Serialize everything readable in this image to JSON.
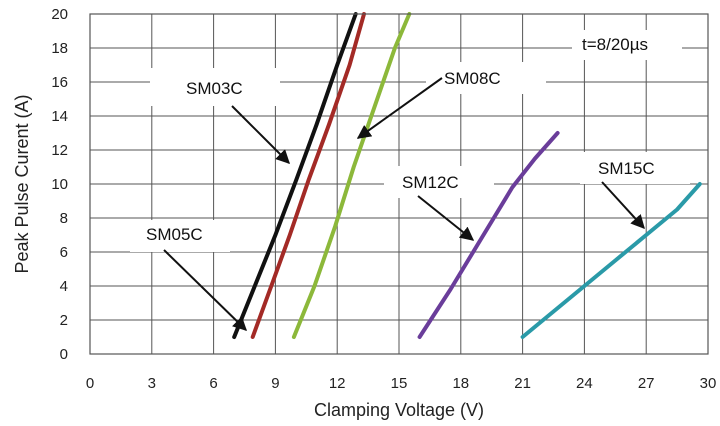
{
  "chart_data": {
    "type": "line",
    "xlabel": "Clamping Voltage (V)",
    "ylabel": "Peak  Pulse Curent (A)",
    "xlim": [
      0,
      30
    ],
    "ylim": [
      0,
      20
    ],
    "xticks": [
      "0",
      "3",
      "6",
      "9",
      "12",
      "15",
      "18",
      "21",
      "24",
      "27",
      "30"
    ],
    "yticks": [
      "0",
      "2",
      "4",
      "6",
      "8",
      "10",
      "12",
      "14",
      "16",
      "18",
      "20"
    ],
    "grid": true,
    "condition_note": "t=8/20µs",
    "series": [
      {
        "name": "SM03C",
        "color": "#111111",
        "x": [
          7.0,
          8.0,
          9.0,
          10.0,
          11.0,
          12.0,
          12.9
        ],
        "y": [
          1,
          4,
          7,
          10.2,
          13.5,
          17,
          20
        ]
      },
      {
        "name": "SM05C",
        "color": "#a32a26",
        "x": [
          7.9,
          8.8,
          9.7,
          10.6,
          11.6,
          12.6,
          13.3
        ],
        "y": [
          1,
          4,
          7,
          10.2,
          13.5,
          17,
          20
        ]
      },
      {
        "name": "SM08C",
        "color": "#8cb83a",
        "x": [
          9.9,
          10.9,
          11.9,
          12.8,
          13.8,
          14.8,
          15.5
        ],
        "y": [
          1,
          4,
          7.5,
          11,
          14.5,
          18,
          20
        ]
      },
      {
        "name": "SM12C",
        "color": "#6a3d9a",
        "x": [
          16.0,
          17.5,
          19.0,
          20.5,
          21.6,
          22.7
        ],
        "y": [
          1,
          3.8,
          6.8,
          9.8,
          11.5,
          13
        ]
      },
      {
        "name": "SM15C",
        "color": "#2a9aa8",
        "x": [
          21.0,
          22.5,
          24.0,
          25.5,
          27.0,
          28.5,
          29.6
        ],
        "y": [
          1,
          2.5,
          4,
          5.5,
          7,
          8.5,
          10
        ]
      }
    ],
    "annotations": [
      {
        "label": "SM03C",
        "target_series": "SM03C"
      },
      {
        "label": "SM05C",
        "target_series": "SM05C"
      },
      {
        "label": "SM08C",
        "target_series": "SM08C"
      },
      {
        "label": "SM12C",
        "target_series": "SM12C"
      },
      {
        "label": "SM15C",
        "target_series": "SM15C"
      }
    ]
  }
}
